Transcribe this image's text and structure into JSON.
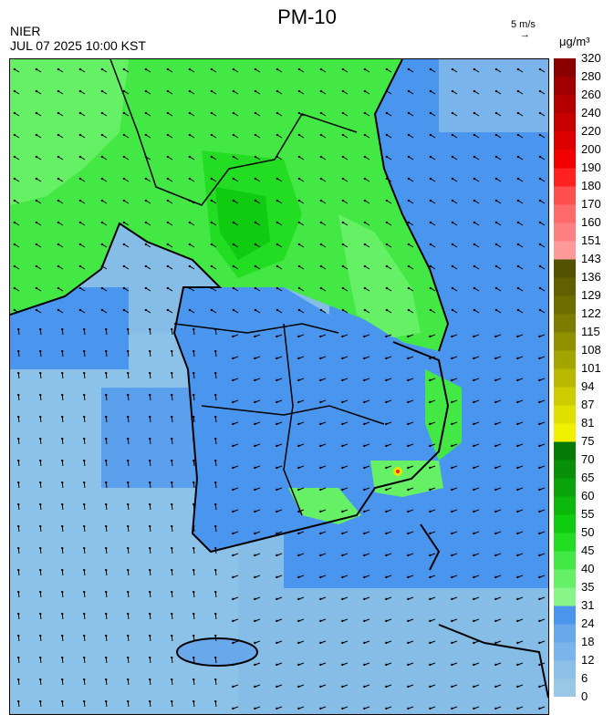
{
  "header": {
    "title": "PM-10",
    "agency": "NIER",
    "datetime": "JUL 07 2025 10:00 KST",
    "vector_scale": "5 m/s",
    "unit": "μg/m³"
  },
  "legend": {
    "ticks": [
      "0",
      "6",
      "12",
      "18",
      "24",
      "31",
      "35",
      "40",
      "45",
      "50",
      "55",
      "60",
      "65",
      "70",
      "75",
      "81",
      "87",
      "94",
      "101",
      "108",
      "115",
      "122",
      "129",
      "136",
      "143",
      "151",
      "160",
      "170",
      "180",
      "190",
      "200",
      "220",
      "240",
      "260",
      "280",
      "320"
    ],
    "colors": [
      "#99c8e6",
      "#8cc0e6",
      "#7ab4ea",
      "#6aa8ec",
      "#4a96ef",
      "#87f587",
      "#66f066",
      "#44e844",
      "#22dd22",
      "#10cc10",
      "#0cb80c",
      "#0aa40a",
      "#089008",
      "#067c06",
      "#f0f000",
      "#e0e000",
      "#cccc00",
      "#b8b800",
      "#a4a400",
      "#909000",
      "#7c7c00",
      "#6e6e00",
      "#606000",
      "#525200",
      "#ff9a9a",
      "#ff8080",
      "#ff6a6a",
      "#ff5050",
      "#ff2020",
      "#f00000",
      "#dd0000",
      "#c80000",
      "#b40000",
      "#a00000",
      "#8a0000"
    ],
    "accent_colors": {
      "good": "#3d8ef0",
      "moderate": "#22dd22",
      "bad": "#e6e600",
      "very_bad": "#ff2020"
    }
  },
  "map": {
    "sea_color": "#7fb8e8",
    "coastline_color": "#000000",
    "arrow_color": "#000000"
  }
}
